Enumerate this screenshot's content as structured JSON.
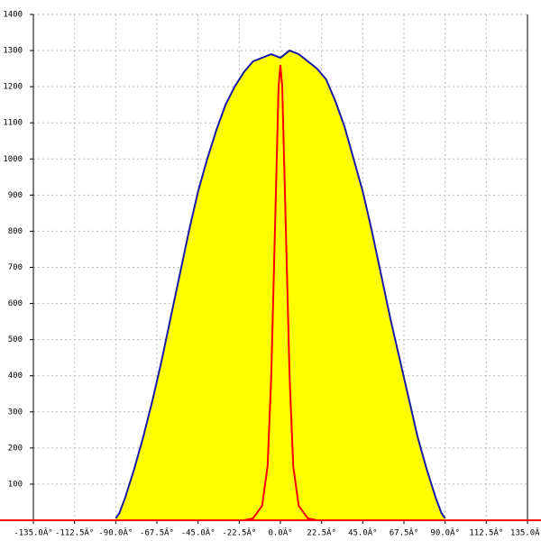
{
  "chart_data": {
    "type": "area-line",
    "xlim": [
      -135,
      135
    ],
    "xticks": [
      {
        "value": -135,
        "label": "-135.0Â°"
      },
      {
        "value": -112.5,
        "label": "-112.5Â°"
      },
      {
        "value": -90,
        "label": "-90.0Â°"
      },
      {
        "value": -67.5,
        "label": "-67.5Â°"
      },
      {
        "value": -45,
        "label": "-45.0Â°"
      },
      {
        "value": -22.5,
        "label": "-22.5Â°"
      },
      {
        "value": 0,
        "label": "0.0Â°"
      },
      {
        "value": 22.5,
        "label": "22.5Â°"
      },
      {
        "value": 45,
        "label": "45.0Â°"
      },
      {
        "value": 67.5,
        "label": "67.5Â°"
      },
      {
        "value": 90,
        "label": "90.0Â°"
      },
      {
        "value": 112.5,
        "label": "112.5Â°"
      },
      {
        "value": 135,
        "label": "135.0Â°"
      }
    ],
    "ylim": [
      0,
      1400
    ],
    "yticks": [
      100,
      200,
      300,
      400,
      500,
      600,
      700,
      800,
      900,
      1000,
      1100,
      1200,
      1300,
      1400
    ],
    "grid": true,
    "series": [
      {
        "color": "#1a1aa6",
        "fill": "#ffff00",
        "x": [
          -90,
          -88,
          -85,
          -80,
          -75,
          -70,
          -65,
          -60,
          -55,
          -50,
          -45,
          -40,
          -35,
          -30,
          -25,
          -20,
          -15,
          -10,
          -5,
          0,
          5,
          10,
          15,
          20,
          25,
          30,
          35,
          40,
          45,
          50,
          55,
          60,
          65,
          70,
          75,
          80,
          85,
          88,
          90
        ],
        "values": [
          5,
          20,
          60,
          140,
          230,
          330,
          440,
          560,
          680,
          800,
          910,
          1000,
          1080,
          1150,
          1200,
          1240,
          1270,
          1280,
          1290,
          1280,
          1300,
          1290,
          1270,
          1250,
          1220,
          1160,
          1090,
          1000,
          910,
          800,
          680,
          560,
          450,
          340,
          230,
          140,
          60,
          20,
          5
        ]
      },
      {
        "color": "#ff0000",
        "x": [
          -135,
          -20,
          -15,
          -10,
          -7,
          -5,
          -3,
          -2,
          -1,
          0,
          1,
          2,
          3,
          5,
          7,
          10,
          15,
          20,
          135
        ],
        "values": [
          0,
          0,
          5,
          40,
          150,
          400,
          800,
          1000,
          1200,
          1260,
          1200,
          1000,
          800,
          400,
          150,
          40,
          5,
          0,
          0
        ]
      }
    ]
  }
}
